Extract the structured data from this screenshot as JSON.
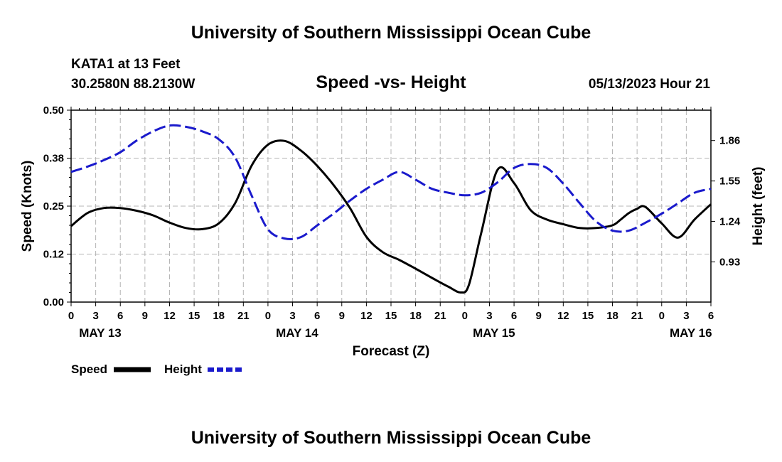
{
  "header": {
    "title": "University of Southern Mississippi Ocean Cube",
    "station": "KATA1 at 13 Feet",
    "coords": "30.2580N  88.2130W",
    "chart_title": "Speed -vs- Height",
    "timestamp": "05/13/2023 Hour 21"
  },
  "footer": {
    "title": "University of Southern Mississippi Ocean Cube"
  },
  "colors": {
    "speed": "#000000",
    "height": "#1a1acc",
    "grid": "#b4b4b4"
  },
  "chart_data": {
    "type": "line",
    "title": "Speed -vs- Height",
    "xlabel": "Forecast (Z)",
    "ylabel": "Speed (Knots)",
    "y2label": "Height (feet)",
    "x_unit": "hours since MAY 13 00Z",
    "xlim": [
      0,
      78
    ],
    "ylim": [
      0,
      0.5
    ],
    "y2lim": [
      0.6225,
      2.0925
    ],
    "grid": true,
    "legend_position": "bottom-left",
    "x_ticks": [
      0,
      3,
      6,
      9,
      12,
      15,
      18,
      21,
      24,
      27,
      30,
      33,
      36,
      39,
      42,
      45,
      48,
      51,
      54,
      57,
      60,
      63,
      66,
      69,
      72,
      75,
      78
    ],
    "x_tick_labels": [
      "0",
      "3",
      "6",
      "9",
      "12",
      "15",
      "18",
      "21",
      "0",
      "3",
      "6",
      "9",
      "12",
      "15",
      "18",
      "21",
      "0",
      "3",
      "6",
      "9",
      "12",
      "15",
      "18",
      "21",
      "0",
      "3",
      "6"
    ],
    "date_labels": [
      {
        "x": 0,
        "label": "MAY 13"
      },
      {
        "x": 24,
        "label": "MAY 14"
      },
      {
        "x": 48,
        "label": "MAY 15"
      },
      {
        "x": 72,
        "label": "MAY 16"
      }
    ],
    "y_ticks": [
      0.0,
      0.125,
      0.25,
      0.375,
      0.5
    ],
    "y_tick_labels": [
      "0.00",
      "0.12",
      "0.25",
      "0.38",
      "0.50"
    ],
    "y2_ticks": [
      0.93,
      1.24,
      1.55,
      1.86
    ],
    "y2_tick_labels": [
      "0.93",
      "1.24",
      "1.55",
      "1.86"
    ],
    "series": [
      {
        "name": "Speed",
        "axis": "left",
        "style": "solid",
        "x": [
          0,
          2,
          4,
          6,
          8,
          10,
          12,
          14,
          16,
          18,
          20,
          22,
          24,
          26,
          28,
          30,
          32,
          34,
          36,
          38,
          40,
          42,
          44,
          46,
          47.5,
          48.5,
          50,
          52,
          54,
          56,
          58,
          60,
          62,
          64,
          66,
          67,
          68,
          69,
          70,
          72,
          74,
          76,
          78
        ],
        "values": [
          0.198,
          0.232,
          0.245,
          0.245,
          0.238,
          0.226,
          0.207,
          0.193,
          0.19,
          0.205,
          0.258,
          0.355,
          0.41,
          0.42,
          0.395,
          0.355,
          0.305,
          0.245,
          0.17,
          0.13,
          0.11,
          0.087,
          0.063,
          0.04,
          0.025,
          0.045,
          0.18,
          0.345,
          0.31,
          0.24,
          0.215,
          0.203,
          0.193,
          0.193,
          0.2,
          0.215,
          0.232,
          0.243,
          0.248,
          0.205,
          0.168,
          0.215,
          0.255
        ]
      },
      {
        "name": "Height",
        "axis": "right",
        "style": "dashed",
        "x": [
          0,
          2,
          4,
          6,
          8,
          10,
          12,
          14,
          16,
          18,
          20,
          22,
          24,
          26,
          28,
          30,
          32,
          34,
          36,
          38,
          40,
          42,
          44,
          46,
          48,
          50,
          52,
          54,
          56,
          58,
          60,
          62,
          64,
          66,
          68,
          70,
          72,
          74,
          76,
          78
        ],
        "values": [
          1.62,
          1.66,
          1.71,
          1.77,
          1.86,
          1.93,
          1.975,
          1.965,
          1.93,
          1.87,
          1.73,
          1.44,
          1.18,
          1.11,
          1.12,
          1.21,
          1.3,
          1.4,
          1.49,
          1.56,
          1.62,
          1.56,
          1.49,
          1.46,
          1.44,
          1.46,
          1.54,
          1.65,
          1.68,
          1.65,
          1.53,
          1.38,
          1.24,
          1.17,
          1.17,
          1.23,
          1.3,
          1.38,
          1.46,
          1.49
        ]
      }
    ]
  }
}
